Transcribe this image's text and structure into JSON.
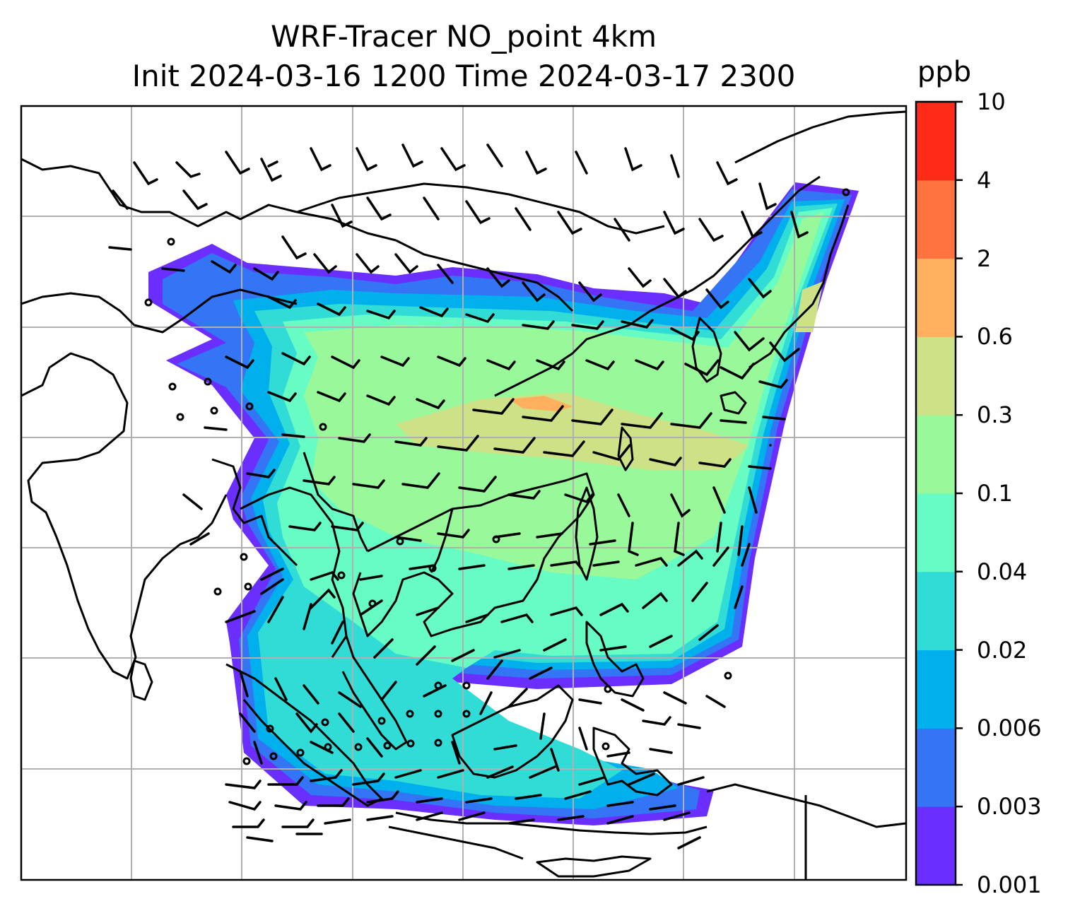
{
  "title": {
    "line1": "WRF-Tracer NO_point 4km",
    "line2": "Init 2024-03-16 1200 Time 2024-03-17 2300"
  },
  "colorbar": {
    "unit": "ppb",
    "levels": [
      "0.001",
      "0.003",
      "0.006",
      "0.02",
      "0.04",
      "0.1",
      "0.3",
      "0.6",
      "2",
      "4",
      "10"
    ],
    "colors": [
      "#6a2eff",
      "#3375f5",
      "#00b0ec",
      "#32dcd6",
      "#66fcc4",
      "#98f89a",
      "#cde286",
      "#feb05f",
      "#ff7340",
      "#ff2a17"
    ]
  },
  "map": {
    "region": "South and Southeast Asia",
    "basemap": "coastlines and country borders",
    "gridlines": true,
    "wind_symbols": "wind barbs"
  }
}
